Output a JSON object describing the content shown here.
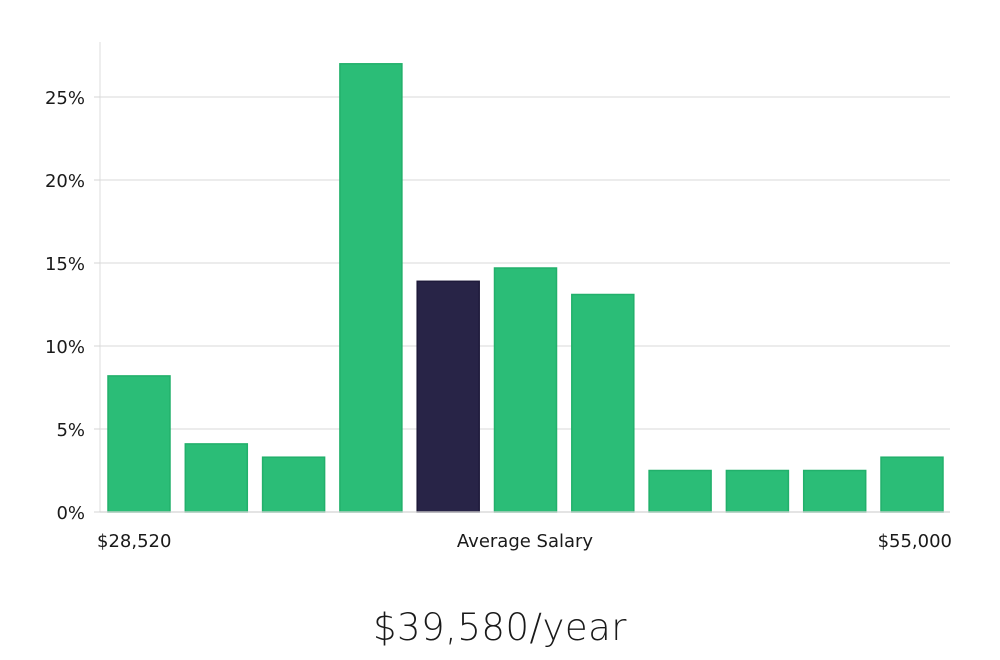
{
  "chart_data": {
    "type": "bar",
    "title": "",
    "xlabel": "Average Salary",
    "ylabel": "",
    "x_min_label": "$28,520",
    "x_max_label": "$55,000",
    "ylim": [
      0,
      28
    ],
    "yticks": [
      0,
      5,
      10,
      15,
      20,
      25
    ],
    "ytick_labels": [
      "0%",
      "5%",
      "10%",
      "15%",
      "20%",
      "25%"
    ],
    "values": [
      8.2,
      4.1,
      3.3,
      27.0,
      13.9,
      14.7,
      13.1,
      2.5,
      2.5,
      2.5,
      3.3
    ],
    "highlight_index": 4,
    "bar_color": "#2bbd77",
    "highlight_color": "#282447",
    "grid": true
  },
  "summary": {
    "salary": "$39,580/year"
  }
}
